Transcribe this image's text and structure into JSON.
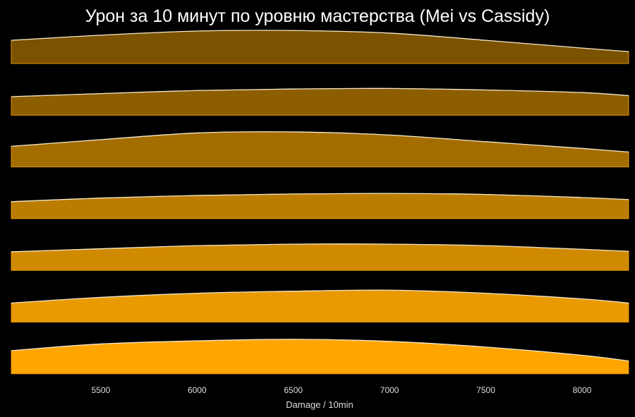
{
  "chart_data": {
    "type": "area",
    "subtype": "ridgeline",
    "title": "Урон за 10 минут по уровню мастерства (Mei vs Cassidy)",
    "xlabel": "Damage / 10min",
    "ylabel": "",
    "xlim": [
      5035,
      8242
    ],
    "xticks": [
      5500,
      6000,
      6500,
      7000,
      7500,
      8000
    ],
    "xtick_labels": [
      "5500",
      "6000",
      "6500",
      "7000",
      "7500",
      "8000"
    ],
    "grid": false,
    "x": [
      5035,
      5500,
      6000,
      6500,
      7000,
      7500,
      8000,
      8242
    ],
    "series": [
      {
        "color": "#7a5200",
        "values": [
          0.45,
          0.55,
          0.63,
          0.64,
          0.59,
          0.45,
          0.3,
          0.23
        ]
      },
      {
        "color": "#8c5e00",
        "values": [
          0.36,
          0.42,
          0.48,
          0.51,
          0.52,
          0.49,
          0.44,
          0.38
        ]
      },
      {
        "color": "#a36d00",
        "values": [
          0.4,
          0.53,
          0.66,
          0.68,
          0.62,
          0.49,
          0.36,
          0.29
        ]
      },
      {
        "color": "#bb7d00",
        "values": [
          0.33,
          0.4,
          0.45,
          0.48,
          0.49,
          0.47,
          0.41,
          0.37
        ]
      },
      {
        "color": "#d08a00",
        "values": [
          0.36,
          0.42,
          0.48,
          0.51,
          0.51,
          0.48,
          0.41,
          0.37
        ]
      },
      {
        "color": "#e89a00",
        "values": [
          0.37,
          0.48,
          0.56,
          0.6,
          0.62,
          0.56,
          0.45,
          0.37
        ]
      },
      {
        "color": "#ffa500",
        "values": [
          0.45,
          0.58,
          0.64,
          0.67,
          0.63,
          0.52,
          0.36,
          0.25
        ]
      }
    ]
  }
}
